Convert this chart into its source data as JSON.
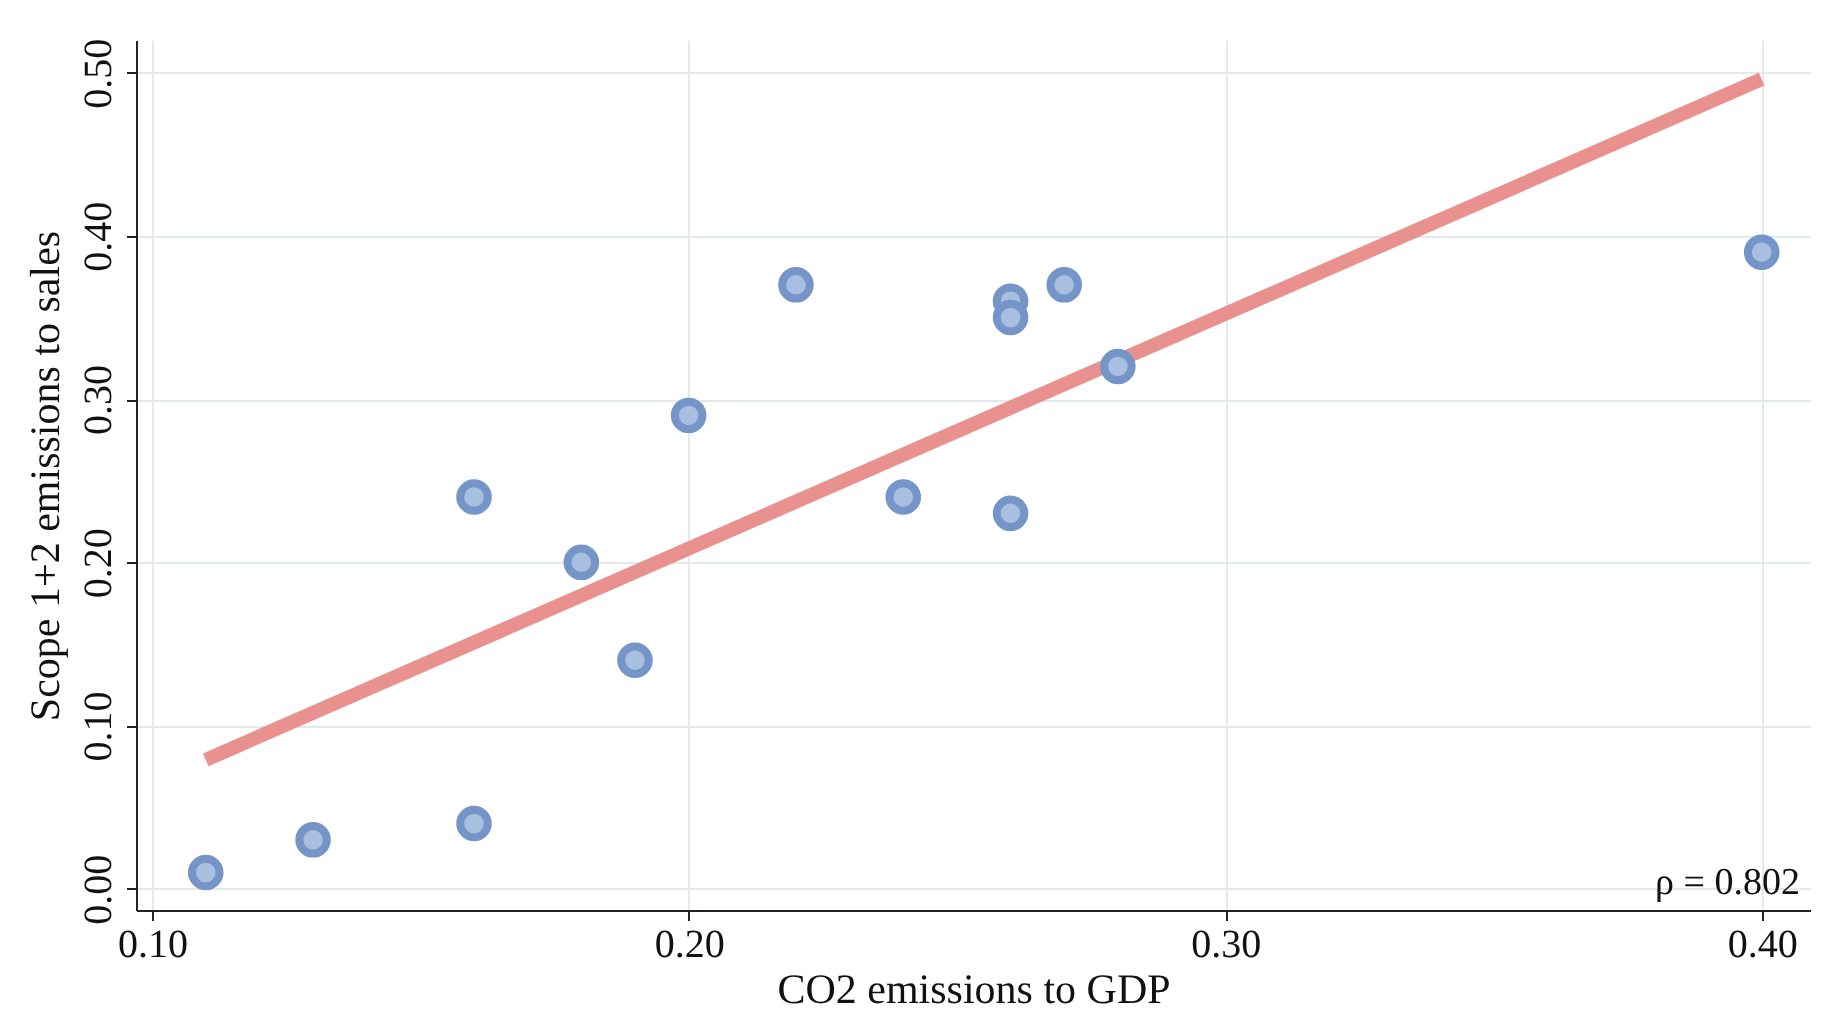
{
  "chart_data": {
    "type": "scatter",
    "xlabel": "CO2 emissions to GDP",
    "ylabel": "Scope 1+2 emissions to sales",
    "xlim": [
      0.097,
      0.409
    ],
    "ylim": [
      -0.013,
      0.52
    ],
    "xticks": [
      {
        "value": 0.1,
        "label": "0.10"
      },
      {
        "value": 0.2,
        "label": "0.20"
      },
      {
        "value": 0.3,
        "label": "0.30"
      },
      {
        "value": 0.4,
        "label": "0.40"
      }
    ],
    "yticks": [
      {
        "value": 0,
        "label": "0.00"
      },
      {
        "value": 0.1,
        "label": "0.10"
      },
      {
        "value": 0.2,
        "label": "0.20"
      },
      {
        "value": 0.3,
        "label": "0.30"
      },
      {
        "value": 0.4,
        "label": "0.40"
      },
      {
        "value": 0.5,
        "label": "0.50"
      }
    ],
    "grid": true,
    "series": [
      {
        "marker": "circle",
        "color": "#7595c9",
        "x": [
          0.11,
          0.13,
          0.16,
          0.16,
          0.18,
          0.19,
          0.2,
          0.22,
          0.24,
          0.26,
          0.26,
          0.26,
          0.27,
          0.28,
          0.4
        ],
        "values": [
          0.01,
          0.03,
          0.04,
          0.24,
          0.2,
          0.14,
          0.29,
          0.37,
          0.24,
          0.36,
          0.35,
          0.23,
          0.37,
          0.32,
          0.39
        ]
      },
      {
        "type": "line",
        "marker": "none",
        "color": "#e8918f",
        "line_style": "solid",
        "x": [
          0.11,
          0.4
        ],
        "values": [
          0.079,
          0.496
        ]
      }
    ],
    "annotations": [
      "ρ = 0.802"
    ]
  }
}
